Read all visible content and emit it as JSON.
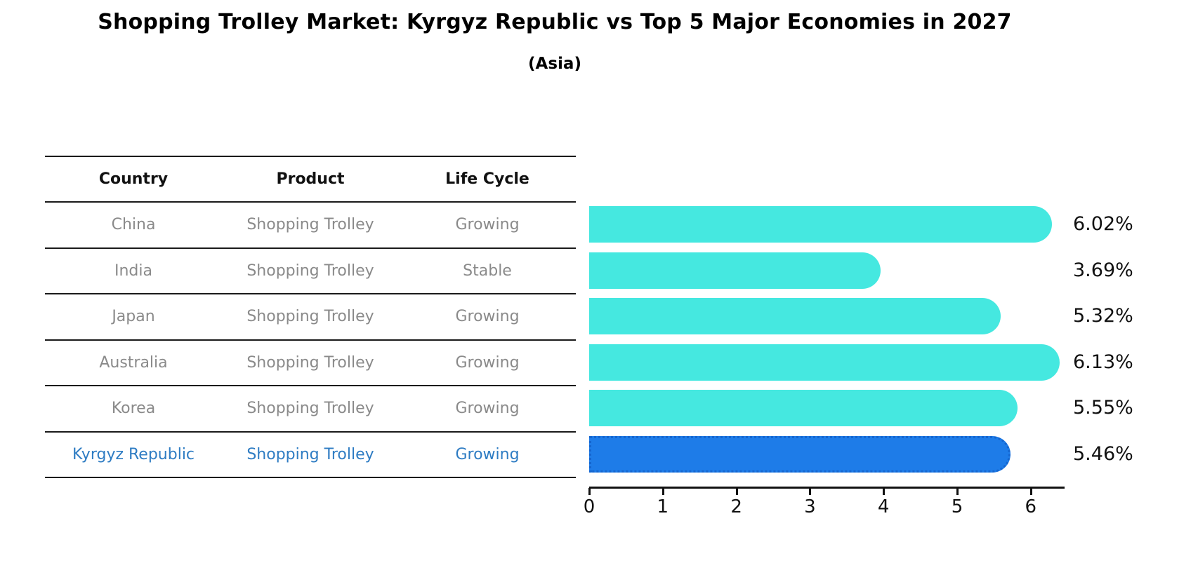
{
  "header": {
    "title": "Shopping Trolley Market: Kyrgyz Republic vs Top 5 Major Economies in 2027",
    "subtitle": "(Asia)"
  },
  "table": {
    "columns": [
      "Country",
      "Product",
      "Life Cycle"
    ],
    "rows": [
      {
        "country": "China",
        "product": "Shopping Trolley",
        "life_cycle": "Growing",
        "highlight": false
      },
      {
        "country": "India",
        "product": "Shopping Trolley",
        "life_cycle": "Stable",
        "highlight": false
      },
      {
        "country": "Japan",
        "product": "Shopping Trolley",
        "life_cycle": "Growing",
        "highlight": false
      },
      {
        "country": "Australia",
        "product": "Shopping Trolley",
        "life_cycle": "Growing",
        "highlight": false
      },
      {
        "country": "Korea",
        "product": "Shopping Trolley",
        "life_cycle": "Growing",
        "highlight": false
      },
      {
        "country": "Kyrgyz Republic",
        "product": "Shopping Trolley",
        "life_cycle": "Growing",
        "highlight": true
      }
    ]
  },
  "chart_data": {
    "type": "bar",
    "orientation": "horizontal",
    "title": "Shopping Trolley Market: Kyrgyz Republic vs Top 5 Major Economies in 2027 (Asia)",
    "categories": [
      "China",
      "India",
      "Japan",
      "Australia",
      "Korea",
      "Kyrgyz Republic"
    ],
    "values": [
      6.02,
      3.69,
      5.32,
      6.13,
      5.55,
      5.46
    ],
    "value_labels": [
      "6.02%",
      "3.69%",
      "5.32%",
      "6.13%",
      "5.55%",
      "5.46%"
    ],
    "xlabel": "",
    "ylabel": "",
    "xlim": [
      0,
      6.45
    ],
    "xticks": [
      "0",
      "1",
      "2",
      "3",
      "4",
      "5",
      "6"
    ],
    "grid": false,
    "legend_position": "none",
    "bar_color": "#45e8e0",
    "highlight_color": "#1e7ce8",
    "highlight_index": 5,
    "highlight_text_color": "#2e7cc3"
  }
}
